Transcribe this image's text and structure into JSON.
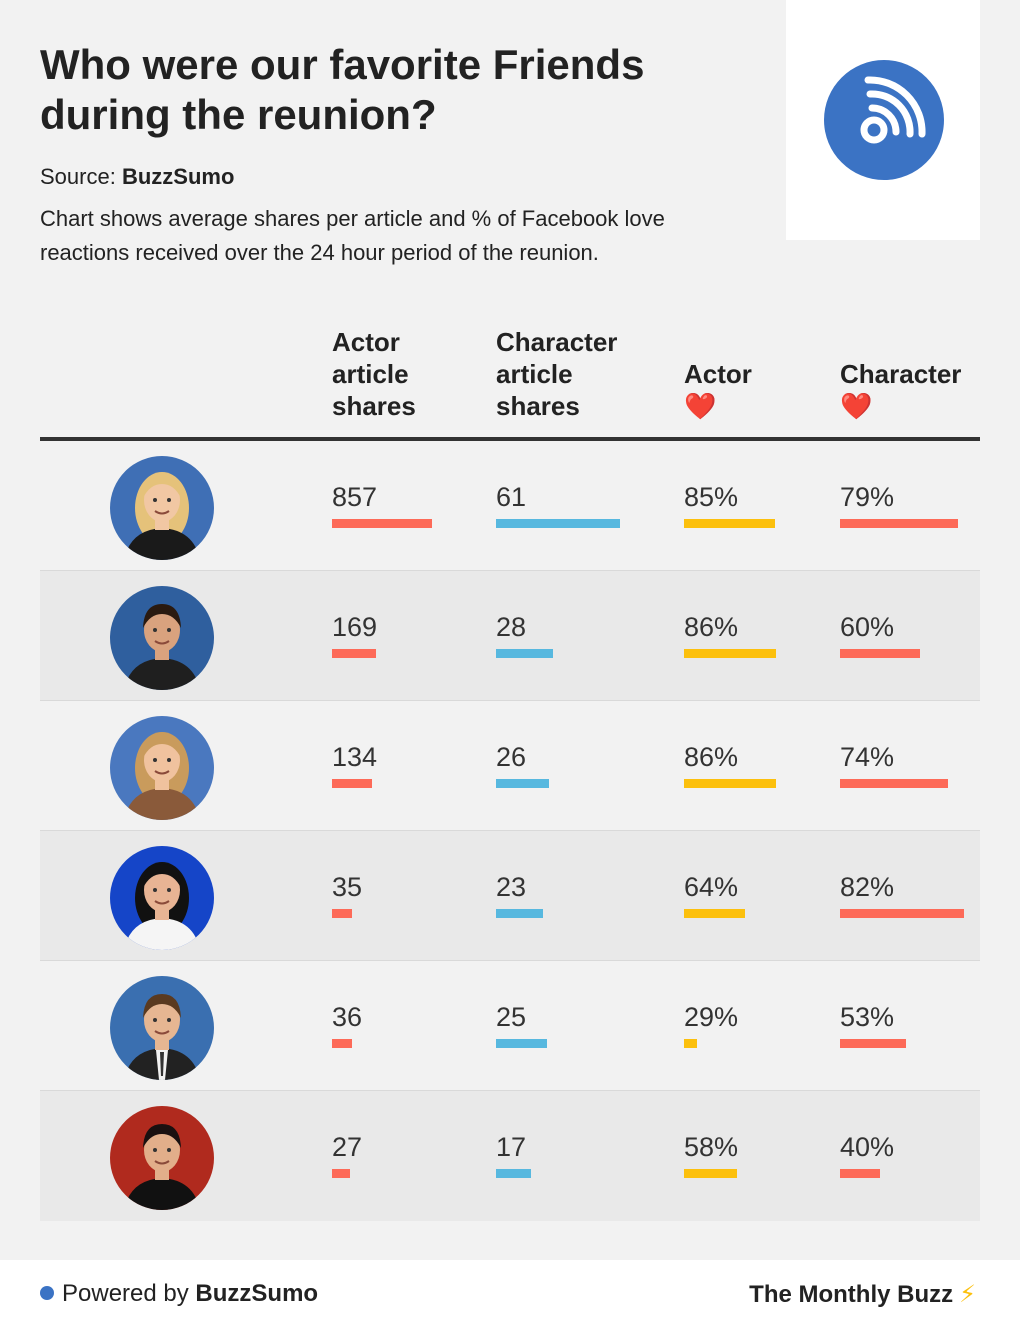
{
  "header": {
    "title": "Who were our favorite Friends during the reunion?",
    "source_label": "Source:",
    "source_name": "BuzzSumo",
    "description": "Chart shows average shares per article and % of Facebook love reactions received over the 24 hour period of the reunion."
  },
  "columns": {
    "actor_shares": "Actor article shares",
    "character_shares": "Character article shares",
    "actor_love": "Actor",
    "character_love": "Character",
    "heart": "❤️"
  },
  "footer": {
    "powered_prefix": "Powered by",
    "powered_brand": "BuzzSumo",
    "newsletter": "The Monthly Buzz",
    "bolt": "⚡"
  },
  "colors": {
    "actor_shares": "#fd6a58",
    "character_shares": "#57b8df",
    "actor_love": "#fcc00d",
    "character_love": "#fd6a58",
    "brand_blue": "#3b73c4"
  },
  "chart_data": {
    "type": "table",
    "rows": [
      {
        "actor_shares": 857,
        "character_shares": 61,
        "actor_love": "85%",
        "character_love": "79%"
      },
      {
        "actor_shares": 169,
        "character_shares": 28,
        "actor_love": "86%",
        "character_love": "60%"
      },
      {
        "actor_shares": 134,
        "character_shares": 26,
        "actor_love": "86%",
        "character_love": "74%"
      },
      {
        "actor_shares": 35,
        "character_shares": 23,
        "actor_love": "64%",
        "character_love": "82%"
      },
      {
        "actor_shares": 36,
        "character_shares": 25,
        "actor_love": "29%",
        "character_love": "53%"
      },
      {
        "actor_shares": 27,
        "character_shares": 17,
        "actor_love": "58%",
        "character_love": "40%"
      }
    ]
  }
}
